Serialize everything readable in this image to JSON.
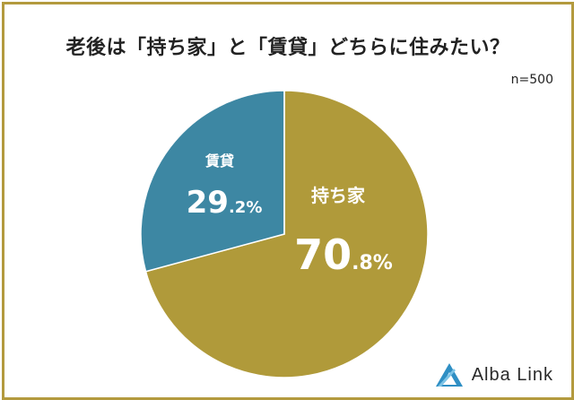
{
  "chart_data": {
    "type": "pie",
    "title": "老後は「持ち家」と「賃貸」どちらに住みたい？",
    "sample_size": "n=500",
    "slices": [
      {
        "label": "持ち家",
        "value": 70.8,
        "value_int": "70",
        "value_dec": ".8%",
        "color": "#b09a3a"
      },
      {
        "label": "賃貸",
        "value": 29.2,
        "value_int": "29",
        "value_dec": ".2%",
        "color": "#3d87a3"
      }
    ]
  },
  "brand": {
    "name": "Alba Link",
    "color": "#2f8fc4"
  },
  "colors": {
    "border": "#b39a3e",
    "label_text": "#ffffff"
  }
}
